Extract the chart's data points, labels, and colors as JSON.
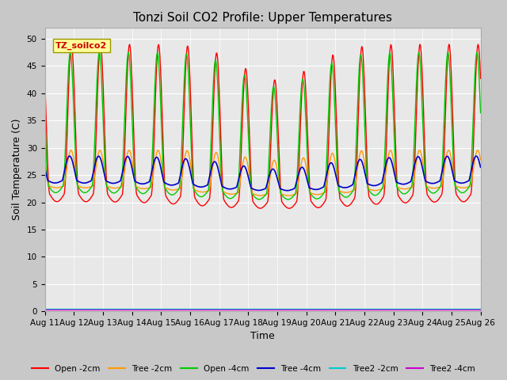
{
  "title": "Tonzi Soil CO2 Profile: Upper Temperatures",
  "xlabel": "Time",
  "ylabel": "Soil Temperature (C)",
  "ylim": [
    0,
    52
  ],
  "yticks": [
    0,
    5,
    10,
    15,
    20,
    25,
    30,
    35,
    40,
    45,
    50
  ],
  "colors": {
    "Open -2cm": "#ff0000",
    "Tree -2cm": "#ff9900",
    "Open -4cm": "#00cc00",
    "Tree -4cm": "#0000cc",
    "Tree2 -2cm": "#00cccc",
    "Tree2 -4cm": "#cc00cc"
  },
  "fig_bg": "#c8c8c8",
  "plot_bg": "#e8e8e8",
  "legend_box_color": "#ffff99",
  "legend_box_edge": "#999900",
  "legend_box_text": "TZ_soilco2",
  "grid_color": "#ffffff",
  "title_fontsize": 11,
  "label_fontsize": 9,
  "tick_fontsize": 7.5
}
